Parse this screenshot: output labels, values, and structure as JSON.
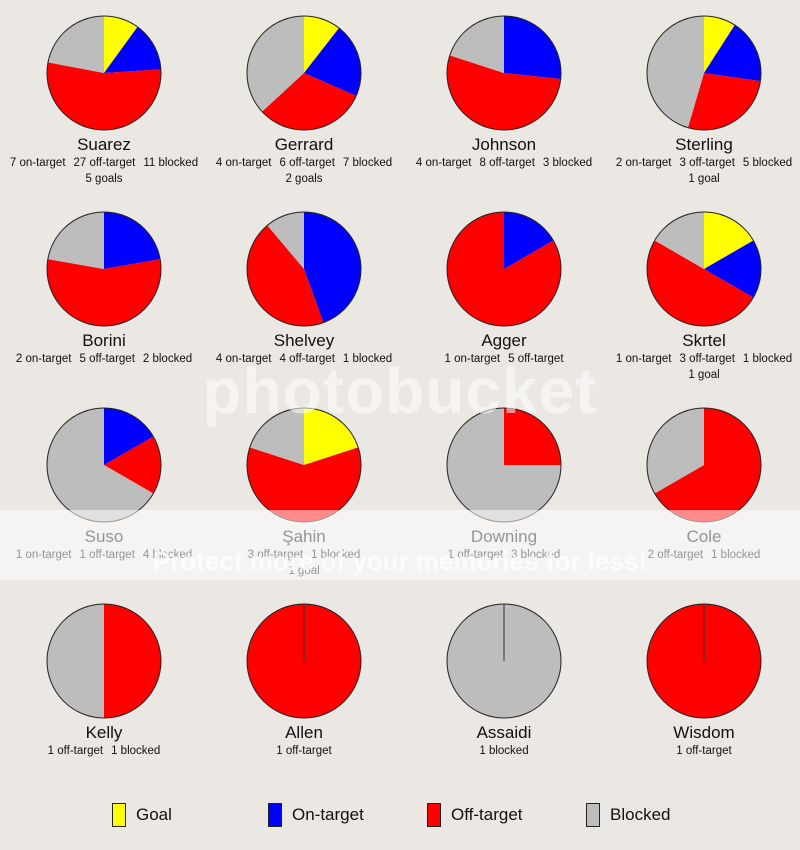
{
  "chart_data": {
    "type": "pie",
    "legend": [
      {
        "name": "Goal",
        "color": "#ffff00"
      },
      {
        "name": "On-target",
        "color": "#0000ff"
      },
      {
        "name": "Off-target",
        "color": "#ff0000"
      },
      {
        "name": "Blocked",
        "color": "#bdbdbd"
      }
    ],
    "players": [
      {
        "name": "Suarez",
        "goal": 5,
        "on_target": 7,
        "off_target": 27,
        "blocked": 11,
        "stats": [
          "7 on-target",
          "27 off-target",
          "11 blocked"
        ],
        "goals_text": "5 goals"
      },
      {
        "name": "Gerrard",
        "goal": 2,
        "on_target": 4,
        "off_target": 6,
        "blocked": 7,
        "stats": [
          "4 on-target",
          "6 off-target",
          "7 blocked"
        ],
        "goals_text": "2 goals"
      },
      {
        "name": "Johnson",
        "goal": 0,
        "on_target": 4,
        "off_target": 8,
        "blocked": 3,
        "stats": [
          "4 on-target",
          "8 off-target",
          "3 blocked"
        ],
        "goals_text": ""
      },
      {
        "name": "Sterling",
        "goal": 1,
        "on_target": 2,
        "off_target": 3,
        "blocked": 5,
        "stats": [
          "2 on-target",
          "3 off-target",
          "5 blocked"
        ],
        "goals_text": "1 goal"
      },
      {
        "name": "Borini",
        "goal": 0,
        "on_target": 2,
        "off_target": 5,
        "blocked": 2,
        "stats": [
          "2 on-target",
          "5 off-target",
          "2 blocked"
        ],
        "goals_text": ""
      },
      {
        "name": "Shelvey",
        "goal": 0,
        "on_target": 4,
        "off_target": 4,
        "blocked": 1,
        "stats": [
          "4 on-target",
          "4 off-target",
          "1 blocked"
        ],
        "goals_text": ""
      },
      {
        "name": "Agger",
        "goal": 0,
        "on_target": 1,
        "off_target": 5,
        "blocked": 0,
        "stats": [
          "1 on-target",
          "5 off-target"
        ],
        "goals_text": ""
      },
      {
        "name": "Skrtel",
        "goal": 1,
        "on_target": 1,
        "off_target": 3,
        "blocked": 1,
        "stats": [
          "1 on-target",
          "3 off-target",
          "1 blocked"
        ],
        "goals_text": "1 goal"
      },
      {
        "name": "Suso",
        "goal": 0,
        "on_target": 1,
        "off_target": 1,
        "blocked": 4,
        "stats": [
          "1 on-target",
          "1 off-target",
          "4 blocked"
        ],
        "goals_text": ""
      },
      {
        "name": "Şahin",
        "goal": 1,
        "on_target": 0,
        "off_target": 3,
        "blocked": 1,
        "stats": [
          "3 off-target",
          "1 blocked"
        ],
        "goals_text": "1 goal"
      },
      {
        "name": "Downing",
        "goal": 0,
        "on_target": 0,
        "off_target": 1,
        "blocked": 3,
        "stats": [
          "1 off-target",
          "3 blocked"
        ],
        "goals_text": ""
      },
      {
        "name": "Cole",
        "goal": 0,
        "on_target": 0,
        "off_target": 2,
        "blocked": 1,
        "stats": [
          "2 off-target",
          "1 blocked"
        ],
        "goals_text": ""
      },
      {
        "name": "Kelly",
        "goal": 0,
        "on_target": 0,
        "off_target": 1,
        "blocked": 1,
        "stats": [
          "1 off-target",
          "1 blocked"
        ],
        "goals_text": ""
      },
      {
        "name": "Allen",
        "goal": 0,
        "on_target": 0,
        "off_target": 1,
        "blocked": 0,
        "stats": [
          "1 off-target"
        ],
        "goals_text": ""
      },
      {
        "name": "Assaidi",
        "goal": 0,
        "on_target": 0,
        "off_target": 0,
        "blocked": 1,
        "stats": [
          "1 blocked"
        ],
        "goals_text": ""
      },
      {
        "name": "Wisdom",
        "goal": 0,
        "on_target": 0,
        "off_target": 1,
        "blocked": 0,
        "stats": [
          "1 off-target"
        ],
        "goals_text": ""
      }
    ]
  },
  "watermark": {
    "brand": "photobucket",
    "tagline": "Protect more of your memories for less!"
  }
}
